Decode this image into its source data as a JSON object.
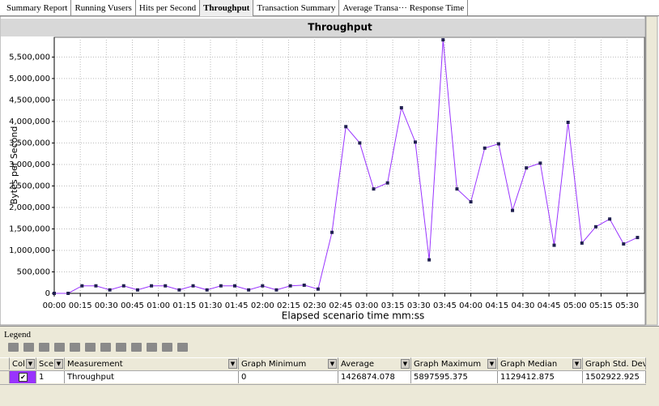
{
  "tabs": [
    "Summary Report",
    "Running Vusers",
    "Hits per Second",
    "Throughput",
    "Transaction Summary",
    "Average Transa··· Response Time"
  ],
  "active_tab": 3,
  "chart_data": {
    "type": "line",
    "title": "Throughput",
    "x_label": "Elapsed scenario time mm:ss",
    "y_label": "Bytes per Second",
    "x": [
      0,
      8,
      16,
      24,
      32,
      40,
      48,
      56,
      64,
      72,
      80,
      88,
      96,
      104,
      112,
      120,
      128,
      136,
      144,
      152,
      160,
      168,
      176,
      184,
      192,
      200,
      208,
      216,
      224,
      232,
      240,
      248,
      256,
      264,
      272,
      280,
      288,
      296,
      304,
      312,
      320,
      328,
      336
    ],
    "series": [
      {
        "name": "Throughput",
        "color": "#9933ff",
        "values": [
          0,
          0,
          175000,
          175000,
          80000,
          175000,
          80000,
          175000,
          175000,
          80000,
          175000,
          80000,
          175000,
          175000,
          80000,
          175000,
          80000,
          175000,
          190000,
          100000,
          1420000,
          3880000,
          3500000,
          2430000,
          2570000,
          4320000,
          3520000,
          780000,
          5900000,
          2430000,
          2130000,
          3380000,
          3480000,
          1930000,
          2920000,
          3030000,
          1120000,
          3980000,
          1170000,
          1550000,
          1730000,
          1150000,
          1300000
        ]
      }
    ],
    "xlim": [
      0,
      340
    ],
    "ylim": [
      0,
      5960000
    ],
    "xticks": [
      {
        "value": 0,
        "label": "00:00"
      },
      {
        "value": 15,
        "label": "00:15"
      },
      {
        "value": 30,
        "label": "00:30"
      },
      {
        "value": 45,
        "label": "00:45"
      },
      {
        "value": 60,
        "label": "01:00"
      },
      {
        "value": 75,
        "label": "01:15"
      },
      {
        "value": 90,
        "label": "01:30"
      },
      {
        "value": 105,
        "label": "01:45"
      },
      {
        "value": 120,
        "label": "02:00"
      },
      {
        "value": 135,
        "label": "02:15"
      },
      {
        "value": 150,
        "label": "02:30"
      },
      {
        "value": 165,
        "label": "02:45"
      },
      {
        "value": 180,
        "label": "03:00"
      },
      {
        "value": 195,
        "label": "03:15"
      },
      {
        "value": 210,
        "label": "03:30"
      },
      {
        "value": 225,
        "label": "03:45"
      },
      {
        "value": 240,
        "label": "04:00"
      },
      {
        "value": 255,
        "label": "04:15"
      },
      {
        "value": 270,
        "label": "04:30"
      },
      {
        "value": 285,
        "label": "04:45"
      },
      {
        "value": 300,
        "label": "05:00"
      },
      {
        "value": 315,
        "label": "05:15"
      },
      {
        "value": 330,
        "label": "05:30"
      }
    ],
    "yticks": [
      0,
      {
        "value": 500000,
        "label": "500,000"
      },
      {
        "value": 1000000,
        "label": "1,000,000"
      },
      {
        "value": 1500000,
        "label": "1,500,000"
      },
      {
        "value": 2000000,
        "label": "2,000,000"
      },
      {
        "value": 2500000,
        "label": "2,500,000"
      },
      {
        "value": 3000000,
        "label": "3,000,000"
      },
      {
        "value": 3500000,
        "label": "3,500,000"
      },
      {
        "value": 4000000,
        "label": "4,000,000"
      },
      {
        "value": 4500000,
        "label": "4,500,000"
      },
      {
        "value": 5000000,
        "label": "5,000,000"
      },
      {
        "value": 5500000,
        "label": "5,500,000"
      }
    ],
    "grid": true
  },
  "legend": {
    "title": "Legend",
    "headers": [
      "Col",
      "Sce",
      "Measurement",
      "Graph Minimum",
      "Average",
      "Graph Maximum",
      "Graph Median",
      "Graph Std. Devia"
    ],
    "rows": [
      [
        "1",
        "Throughput",
        "0",
        "1426874.078",
        "5897595.375",
        "1129412.875",
        "1502922.925"
      ]
    ]
  }
}
